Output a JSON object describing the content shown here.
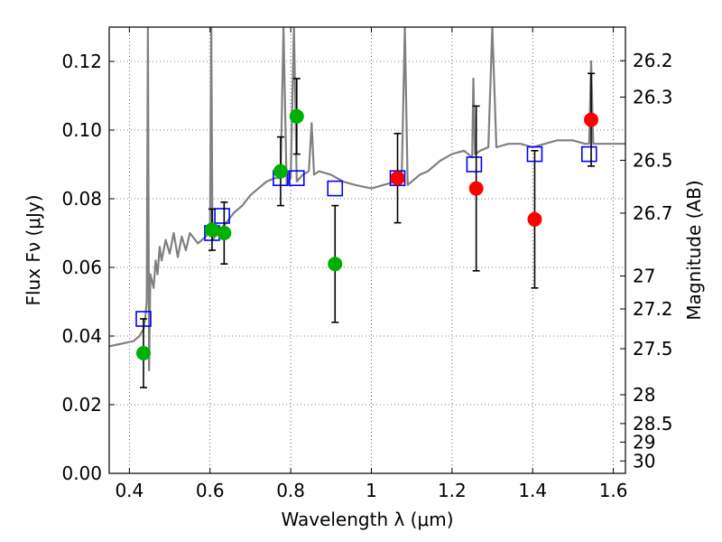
{
  "chart_data": {
    "type": "scatter",
    "title": "",
    "xlabel": "Wavelength λ (μm)",
    "ylabel": "Flux Fν (μJy)",
    "y2label": "Magnitude (AB)",
    "xlim": [
      0.35,
      1.63
    ],
    "ylim": [
      0.0,
      0.13
    ],
    "grid": true,
    "x_ticks": [
      0.4,
      0.6,
      0.8,
      1.0,
      1.2,
      1.4,
      1.6
    ],
    "x_tick_labels": [
      "0.4",
      "0.6",
      "0.8",
      "1",
      "1.2",
      "1.4",
      "1.6"
    ],
    "y_ticks": [
      0.0,
      0.02,
      0.04,
      0.06,
      0.08,
      0.1,
      0.12
    ],
    "y_tick_labels": [
      "0.00",
      "0.02",
      "0.04",
      "0.06",
      "0.08",
      "0.10",
      "0.12"
    ],
    "y2_ticks": [
      {
        "label": "26.2",
        "flux": 0.1202
      },
      {
        "label": "26.3",
        "flux": 0.1096
      },
      {
        "label": "26.5",
        "flux": 0.0912
      },
      {
        "label": "26.7",
        "flux": 0.0758
      },
      {
        "label": "27",
        "flux": 0.0575
      },
      {
        "label": "27.2",
        "flux": 0.0479
      },
      {
        "label": "27.5",
        "flux": 0.0363
      },
      {
        "label": "28",
        "flux": 0.0229
      },
      {
        "label": "28.5",
        "flux": 0.0145
      },
      {
        "label": "29",
        "flux": 0.0091
      },
      {
        "label": "30",
        "flux": 0.0036
      }
    ],
    "series": [
      {
        "kind": "line",
        "color": "#808080",
        "points": [
          [
            0.35,
            0.037
          ],
          [
            0.37,
            0.0375
          ],
          [
            0.39,
            0.038
          ],
          [
            0.41,
            0.0385
          ],
          [
            0.425,
            0.04
          ],
          [
            0.435,
            0.042
          ],
          [
            0.44,
            0.046
          ],
          [
            0.443,
            0.05
          ],
          [
            0.446,
            0.13
          ],
          [
            0.449,
            0.03
          ],
          [
            0.452,
            0.058
          ],
          [
            0.46,
            0.054
          ],
          [
            0.465,
            0.062
          ],
          [
            0.47,
            0.058
          ],
          [
            0.475,
            0.066
          ],
          [
            0.48,
            0.062
          ],
          [
            0.49,
            0.068
          ],
          [
            0.5,
            0.064
          ],
          [
            0.51,
            0.07
          ],
          [
            0.52,
            0.063
          ],
          [
            0.53,
            0.069
          ],
          [
            0.54,
            0.065
          ],
          [
            0.55,
            0.07
          ],
          [
            0.57,
            0.067
          ],
          [
            0.59,
            0.069
          ],
          [
            0.6,
            0.072
          ],
          [
            0.603,
            0.13
          ],
          [
            0.606,
            0.068
          ],
          [
            0.62,
            0.07
          ],
          [
            0.64,
            0.073
          ],
          [
            0.66,
            0.076
          ],
          [
            0.68,
            0.078
          ],
          [
            0.7,
            0.081
          ],
          [
            0.72,
            0.083
          ],
          [
            0.74,
            0.085
          ],
          [
            0.76,
            0.086
          ],
          [
            0.775,
            0.086
          ],
          [
            0.782,
            0.13
          ],
          [
            0.79,
            0.084
          ],
          [
            0.8,
            0.086
          ],
          [
            0.808,
            0.13
          ],
          [
            0.815,
            0.085
          ],
          [
            0.83,
            0.087
          ],
          [
            0.845,
            0.088
          ],
          [
            0.852,
            0.102
          ],
          [
            0.858,
            0.087
          ],
          [
            0.87,
            0.088
          ],
          [
            0.9,
            0.087
          ],
          [
            0.93,
            0.085
          ],
          [
            0.96,
            0.084
          ],
          [
            1.0,
            0.083
          ],
          [
            1.03,
            0.084
          ],
          [
            1.06,
            0.085
          ],
          [
            1.075,
            0.085
          ],
          [
            1.083,
            0.13
          ],
          [
            1.09,
            0.084
          ],
          [
            1.1,
            0.085
          ],
          [
            1.12,
            0.087
          ],
          [
            1.14,
            0.088
          ],
          [
            1.17,
            0.091
          ],
          [
            1.2,
            0.093
          ],
          [
            1.23,
            0.094
          ],
          [
            1.25,
            0.092
          ],
          [
            1.253,
            0.115
          ],
          [
            1.257,
            0.093
          ],
          [
            1.27,
            0.094
          ],
          [
            1.29,
            0.095
          ],
          [
            1.3,
            0.13
          ],
          [
            1.31,
            0.095
          ],
          [
            1.34,
            0.096
          ],
          [
            1.37,
            0.096
          ],
          [
            1.4,
            0.095
          ],
          [
            1.43,
            0.096
          ],
          [
            1.46,
            0.097
          ],
          [
            1.5,
            0.097
          ],
          [
            1.53,
            0.096
          ],
          [
            1.54,
            0.096
          ],
          [
            1.545,
            0.12
          ],
          [
            1.55,
            0.096
          ],
          [
            1.58,
            0.096
          ],
          [
            1.6,
            0.096
          ],
          [
            1.63,
            0.096
          ]
        ]
      },
      {
        "kind": "model_squares",
        "color": "#0000ff",
        "points": [
          [
            0.435,
            0.045
          ],
          [
            0.605,
            0.07
          ],
          [
            0.63,
            0.075
          ],
          [
            0.775,
            0.086
          ],
          [
            0.815,
            0.086
          ],
          [
            0.91,
            0.083
          ],
          [
            1.065,
            0.086
          ],
          [
            1.255,
            0.09
          ],
          [
            1.405,
            0.093
          ],
          [
            1.54,
            0.093
          ]
        ]
      },
      {
        "kind": "points_err",
        "color": "#00b000",
        "points": [
          {
            "x": 0.435,
            "y": 0.035,
            "err": 0.01
          },
          {
            "x": 0.605,
            "y": 0.071,
            "err": 0.006
          },
          {
            "x": 0.635,
            "y": 0.07,
            "err": 0.009
          },
          {
            "x": 0.775,
            "y": 0.088,
            "err": 0.01
          },
          {
            "x": 0.815,
            "y": 0.104,
            "err": 0.011
          },
          {
            "x": 0.91,
            "y": 0.061,
            "err": 0.017
          }
        ]
      },
      {
        "kind": "points_err",
        "color": "#ff0000",
        "points": [
          {
            "x": 1.065,
            "y": 0.086,
            "err": 0.013
          },
          {
            "x": 1.26,
            "y": 0.083,
            "err": 0.024
          },
          {
            "x": 1.405,
            "y": 0.074,
            "err": 0.02
          },
          {
            "x": 1.545,
            "y": 0.103,
            "err": 0.0135
          }
        ]
      }
    ]
  }
}
